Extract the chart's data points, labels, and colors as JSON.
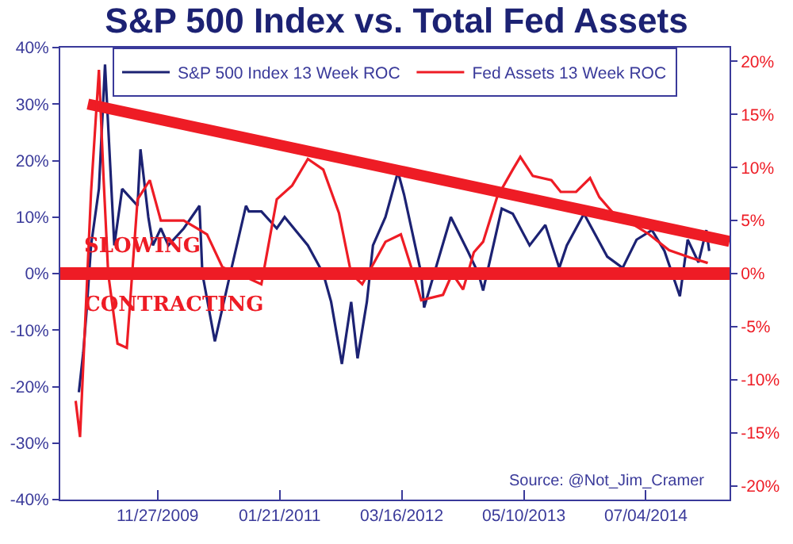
{
  "chart_data": {
    "type": "line",
    "title": "S&P 500 Index vs. Total Fed Assets",
    "xlim": [
      "2008-12-27",
      "2015-04-18"
    ],
    "xticks": [
      {
        "value": "2009-11-27",
        "label": "11/27/2009"
      },
      {
        "value": "2011-01-21",
        "label": "01/21/2011"
      },
      {
        "value": "2012-03-16",
        "label": "03/16/2012"
      },
      {
        "value": "2013-05-10",
        "label": "05/10/2013"
      },
      {
        "value": "2014-07-04",
        "label": "07/04/2014"
      }
    ],
    "ylim": [
      -40,
      40
    ],
    "yticks": [
      {
        "value": -40,
        "label": "-40%"
      },
      {
        "value": -30,
        "label": "-30%"
      },
      {
        "value": -20,
        "label": "-20%"
      },
      {
        "value": -10,
        "label": "-10%"
      },
      {
        "value": 0,
        "label": "0%"
      },
      {
        "value": 10,
        "label": "10%"
      },
      {
        "value": 20,
        "label": "20%"
      },
      {
        "value": 30,
        "label": "30%"
      },
      {
        "value": 40,
        "label": "40%"
      }
    ],
    "y2lim": [
      -21.3,
      21.3
    ],
    "y2ticks": [
      {
        "value": -20,
        "label": "-20%"
      },
      {
        "value": -15,
        "label": "-15%"
      },
      {
        "value": -10,
        "label": "-10%"
      },
      {
        "value": -5,
        "label": "-5%"
      },
      {
        "value": 0,
        "label": "0%"
      },
      {
        "value": 5,
        "label": "5%"
      },
      {
        "value": 10,
        "label": "10%"
      },
      {
        "value": 15,
        "label": "15%"
      },
      {
        "value": 20,
        "label": "20%"
      }
    ],
    "legend": "top",
    "grid": false,
    "marker": "none",
    "line_style": "solid",
    "series": [
      {
        "name": "S&P 500 Index 13 Week ROC",
        "color": "#1c2273",
        "x": [
          "2009-03-01",
          "2009-03-16",
          "2009-03-27",
          "2009-04-12",
          "2009-05-09",
          "2009-05-30",
          "2009-07-01",
          "2009-07-28",
          "2009-09-19",
          "2009-09-29",
          "2009-10-26",
          "2009-11-11",
          "2009-12-08",
          "2010-01-03",
          "2010-02-25",
          "2010-04-20",
          "2010-04-30",
          "2010-06-12",
          "2010-08-04",
          "2010-09-27",
          "2010-10-07",
          "2010-11-19",
          "2011-01-11",
          "2011-02-07",
          "2011-04-28",
          "2011-06-20",
          "2011-07-17",
          "2011-08-23",
          "2011-09-24",
          "2011-10-16",
          "2011-11-17",
          "2011-12-08",
          "2012-01-20",
          "2012-03-03",
          "2012-03-24",
          "2012-05-22",
          "2012-06-01",
          "2012-09-01",
          "2012-10-29",
          "2012-12-05",
          "2012-12-21",
          "2013-02-23",
          "2013-04-02",
          "2013-05-30",
          "2013-07-23",
          "2013-09-09",
          "2013-10-05",
          "2013-12-03",
          "2014-02-21",
          "2014-04-15",
          "2014-06-02",
          "2014-07-25",
          "2014-09-06",
          "2014-10-29",
          "2014-11-25",
          "2015-01-01",
          "2015-01-28",
          "2015-02-07"
        ],
        "values": [
          -21,
          -14,
          -7,
          5,
          15,
          37,
          5,
          15,
          12,
          22,
          10,
          5,
          8,
          5,
          8,
          12,
          0,
          -12,
          0,
          12,
          11,
          11,
          8,
          10,
          5,
          0,
          -5,
          -16,
          -5,
          -15,
          -5,
          5,
          10,
          18,
          14,
          0,
          -6,
          10,
          4,
          0,
          -3,
          11.5,
          10.6,
          5,
          8.6,
          1,
          5,
          10.6,
          3,
          1,
          6,
          7.7,
          4,
          -4,
          6,
          2,
          7.7,
          4
        ]
      },
      {
        "name": "Fed Assets 13 Week ROC",
        "color": "#ee1c25",
        "axis": "y2",
        "x": [
          "2009-02-18",
          "2009-03-05",
          "2009-04-12",
          "2009-05-09",
          "2009-05-25",
          "2009-06-10",
          "2009-07-12",
          "2009-08-13",
          "2009-09-19",
          "2009-10-31",
          "2009-12-08",
          "2010-02-25",
          "2010-05-16",
          "2010-07-08",
          "2010-08-31",
          "2010-11-19",
          "2011-01-11",
          "2011-03-05",
          "2011-04-28",
          "2011-06-20",
          "2011-08-13",
          "2011-09-24",
          "2011-11-01",
          "2012-01-20",
          "2012-03-13",
          "2012-05-06",
          "2012-05-22",
          "2012-08-05",
          "2012-09-06",
          "2012-10-13",
          "2012-11-19",
          "2012-12-21",
          "2013-02-07",
          "2013-04-02",
          "2013-04-28",
          "2013-06-10",
          "2013-08-13",
          "2013-09-14",
          "2013-11-06",
          "2013-12-24",
          "2014-01-25",
          "2014-03-14",
          "2014-05-23",
          "2014-07-15",
          "2014-09-22",
          "2014-12-05",
          "2015-02-02"
        ],
        "values": [
          -12,
          -15.4,
          7.7,
          19.2,
          9,
          0,
          -6.6,
          -7,
          7,
          8.8,
          5,
          5,
          3.7,
          0.6,
          0,
          -1,
          7,
          8.3,
          10.8,
          9.8,
          5.7,
          0,
          -1,
          3,
          3.7,
          -1,
          -2.5,
          -2,
          0,
          -1.5,
          2,
          3,
          7.2,
          9.8,
          11,
          9.2,
          8.8,
          7.7,
          7.7,
          9,
          7.2,
          5.7,
          4.6,
          3.7,
          2.2,
          1.5,
          1
        ]
      },
      {
        "type": "line",
        "color": "#ee1c25",
        "x": [
          "2009-04-01",
          "2015-04-18"
        ],
        "values": [
          30,
          5.7
        ]
      }
    ],
    "ref_lines": [
      {
        "axis": "y",
        "value": 0,
        "color": "#ee1c25"
      }
    ],
    "annotations": [
      "SLOWING",
      "CONTRACTING",
      "Source: @Not_Jim_Cramer"
    ]
  }
}
